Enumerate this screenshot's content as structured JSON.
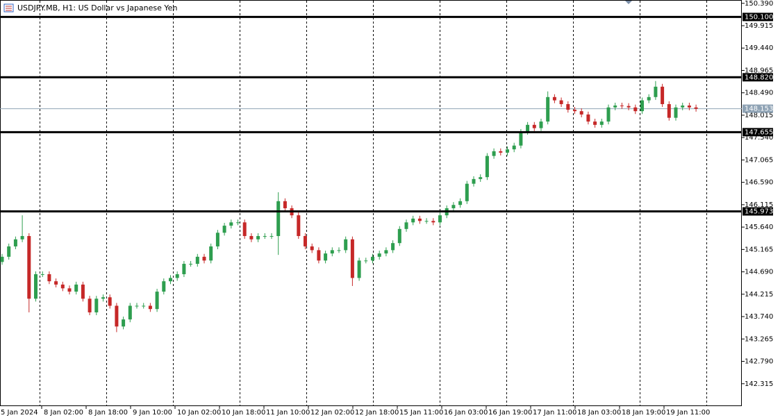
{
  "chart_data": {
    "type": "candlestick",
    "title": "USDJPY.MB, H1:  US Dollar vs Japanese Yen",
    "x_labels": [
      "5 Jan 2024",
      "8 Jan 02:00",
      "8 Jan 18:00",
      "9 Jan 10:00",
      "10 Jan 02:00",
      "10 Jan 18:00",
      "11 Jan 10:00",
      "12 Jan 02:00",
      "12 Jan 18:00",
      "15 Jan 11:00",
      "16 Jan 03:00",
      "16 Jan 19:00",
      "17 Jan 11:00",
      "18 Jan 03:00",
      "18 Jan 19:00",
      "19 Jan 11:00"
    ],
    "up_color": "#2e9e4f",
    "down_color": "#c62828",
    "open": [
      144.9,
      145.01,
      145.23,
      145.38,
      145.45,
      144.12,
      144.64,
      144.64,
      144.49,
      144.42,
      144.34,
      144.27,
      144.42,
      144.12,
      143.83,
      144.12,
      144.15,
      143.97,
      143.53,
      143.68,
      143.97,
      143.97,
      143.97,
      143.9,
      144.27,
      144.49,
      144.56,
      144.64,
      144.86,
      144.86,
      145.01,
      144.93,
      145.23,
      145.52,
      145.67,
      145.74,
      145.74,
      145.45,
      145.38,
      145.45,
      145.45,
      145.45,
      146.19,
      146.04,
      145.89,
      145.45,
      145.23,
      145.15,
      144.93,
      145.08,
      145.15,
      145.15,
      145.38,
      144.56,
      144.93,
      144.93,
      145.01,
      145.08,
      145.15,
      145.3,
      145.6,
      145.74,
      145.82,
      145.77,
      145.77,
      145.74,
      145.89,
      146.04,
      146.11,
      146.19,
      146.56,
      146.66,
      146.7,
      147.15,
      147.25,
      147.22,
      147.29,
      147.37,
      147.66,
      147.81,
      147.74,
      147.88,
      148.4,
      148.33,
      148.25,
      148.13,
      148.1,
      148.03,
      147.88,
      147.81,
      147.88,
      148.18,
      148.22,
      148.21,
      148.18,
      148.1,
      148.33,
      148.4,
      148.62,
      148.25,
      147.96,
      148.18,
      148.22,
      148.18
    ],
    "high": [
      145.07,
      145.29,
      145.44,
      145.89,
      145.51,
      144.7,
      144.7,
      144.7,
      144.55,
      144.48,
      144.4,
      144.48,
      144.48,
      144.18,
      144.18,
      144.21,
      144.21,
      144.03,
      143.74,
      144.03,
      144.03,
      144.03,
      144.03,
      144.33,
      144.55,
      144.62,
      144.7,
      144.92,
      144.92,
      145.07,
      145.07,
      145.29,
      145.58,
      145.73,
      145.8,
      145.8,
      145.8,
      145.51,
      145.51,
      145.51,
      145.51,
      146.38,
      146.25,
      146.1,
      145.95,
      145.51,
      145.29,
      145.21,
      145.14,
      145.21,
      145.21,
      145.44,
      145.44,
      144.99,
      144.99,
      145.07,
      145.14,
      145.21,
      145.36,
      145.66,
      145.8,
      145.88,
      145.88,
      145.83,
      145.83,
      145.95,
      146.1,
      146.17,
      146.25,
      146.62,
      146.72,
      146.76,
      147.21,
      147.31,
      147.31,
      147.35,
      147.43,
      147.72,
      147.87,
      147.87,
      147.94,
      148.52,
      148.46,
      148.39,
      148.31,
      148.19,
      148.16,
      148.09,
      147.94,
      147.94,
      148.24,
      148.28,
      148.28,
      148.27,
      148.24,
      148.39,
      148.46,
      148.74,
      148.68,
      148.31,
      148.24,
      148.28,
      148.28,
      148.24
    ],
    "low": [
      144.84,
      144.95,
      145.17,
      145.32,
      143.83,
      144.06,
      144.58,
      144.43,
      144.36,
      144.28,
      144.21,
      144.21,
      144.06,
      143.77,
      143.77,
      144.06,
      143.91,
      143.41,
      143.47,
      143.62,
      143.91,
      143.91,
      143.84,
      143.84,
      144.21,
      144.43,
      144.5,
      144.58,
      144.8,
      144.8,
      144.87,
      144.87,
      145.17,
      145.46,
      145.61,
      145.68,
      145.39,
      145.32,
      145.32,
      145.39,
      145.39,
      145.05,
      145.98,
      145.83,
      145.39,
      145.17,
      145.09,
      144.87,
      144.87,
      145.02,
      145.09,
      145.09,
      144.39,
      144.5,
      144.87,
      144.87,
      144.95,
      145.02,
      145.09,
      145.24,
      145.54,
      145.68,
      145.71,
      145.71,
      145.68,
      145.68,
      145.83,
      145.98,
      146.05,
      146.13,
      146.5,
      146.6,
      146.64,
      147.09,
      147.16,
      147.16,
      147.23,
      147.31,
      147.6,
      147.68,
      147.68,
      147.82,
      148.27,
      148.19,
      148.07,
      148.04,
      147.97,
      147.82,
      147.75,
      147.75,
      147.82,
      148.12,
      148.15,
      148.12,
      148.04,
      148.04,
      148.27,
      148.34,
      148.19,
      147.9,
      147.9,
      148.12,
      148.12,
      148.09
    ],
    "close": [
      145.01,
      145.23,
      145.38,
      145.45,
      144.12,
      144.64,
      144.64,
      144.49,
      144.42,
      144.34,
      144.27,
      144.42,
      144.12,
      143.83,
      144.12,
      144.15,
      143.97,
      143.53,
      143.68,
      143.97,
      143.97,
      143.97,
      143.9,
      144.27,
      144.49,
      144.56,
      144.64,
      144.86,
      144.86,
      145.01,
      144.93,
      145.23,
      145.52,
      145.67,
      145.74,
      145.74,
      145.45,
      145.38,
      145.45,
      145.45,
      145.45,
      146.19,
      146.04,
      145.89,
      145.45,
      145.23,
      145.15,
      144.93,
      145.08,
      145.15,
      145.15,
      145.38,
      144.56,
      144.93,
      144.93,
      145.01,
      145.08,
      145.15,
      145.3,
      145.6,
      145.74,
      145.82,
      145.77,
      145.77,
      145.74,
      145.89,
      146.04,
      146.11,
      146.19,
      146.56,
      146.66,
      146.7,
      147.15,
      147.25,
      147.22,
      147.29,
      147.37,
      147.66,
      147.81,
      147.74,
      147.88,
      148.4,
      148.33,
      148.25,
      148.13,
      148.1,
      148.03,
      147.88,
      147.81,
      147.88,
      148.18,
      148.22,
      148.21,
      148.18,
      148.1,
      148.33,
      148.4,
      148.62,
      148.25,
      147.96,
      148.18,
      148.22,
      148.18,
      148.15
    ],
    "ylim": [
      141.84,
      150.46
    ],
    "yticks": [
      {
        "value": 150.39,
        "label": "150.390"
      },
      {
        "value": 149.915,
        "label": "149.915"
      },
      {
        "value": 149.44,
        "label": "149.440"
      },
      {
        "value": 148.965,
        "label": "148.965"
      },
      {
        "value": 148.49,
        "label": "148.490"
      },
      {
        "value": 148.015,
        "label": "148.015"
      },
      {
        "value": 147.54,
        "label": "147.540"
      },
      {
        "value": 147.065,
        "label": "147.065"
      },
      {
        "value": 146.59,
        "label": "146.590"
      },
      {
        "value": 146.115,
        "label": "146.115"
      },
      {
        "value": 145.64,
        "label": "145.640"
      },
      {
        "value": 145.165,
        "label": "145.165"
      },
      {
        "value": 144.69,
        "label": "144.690"
      },
      {
        "value": 144.215,
        "label": "144.215"
      },
      {
        "value": 143.74,
        "label": "143.740"
      },
      {
        "value": 143.265,
        "label": "143.265"
      },
      {
        "value": 142.79,
        "label": "142.790"
      },
      {
        "value": 142.315,
        "label": "142.315"
      }
    ],
    "levels": [
      {
        "value": 150.1,
        "label": "150.100"
      },
      {
        "value": 148.82,
        "label": "148.820"
      },
      {
        "value": 147.655,
        "label": "147.655"
      },
      {
        "value": 145.973,
        "label": "145.973"
      }
    ],
    "level_color": "#000000",
    "last_price": 148.153,
    "last_price_color": "#8fa3b5"
  }
}
